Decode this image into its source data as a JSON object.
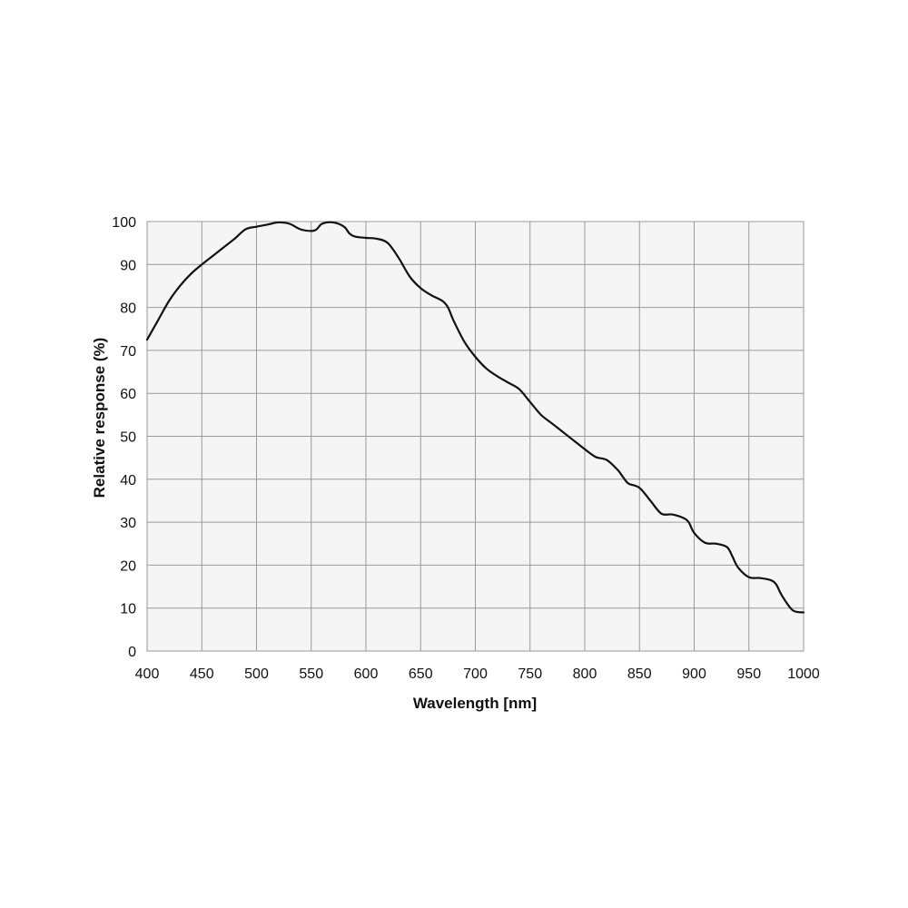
{
  "chart_data": {
    "type": "line",
    "xlabel": "Wavelength [nm]",
    "ylabel": "Relative response (%)",
    "xlim": [
      400,
      1000
    ],
    "ylim": [
      0,
      100
    ],
    "x_ticks": [
      400,
      450,
      500,
      550,
      600,
      650,
      700,
      750,
      800,
      850,
      900,
      950,
      1000
    ],
    "y_ticks": [
      0,
      10,
      20,
      30,
      40,
      50,
      60,
      70,
      80,
      90,
      100
    ],
    "grid": true,
    "line_color": "#111111",
    "plot_background": "#f5f5f5",
    "grid_color": "#9a9a9a",
    "series": [
      {
        "x": [
          400,
          410,
          420,
          430,
          440,
          450,
          460,
          470,
          480,
          490,
          500,
          510,
          520,
          530,
          540,
          550,
          555,
          560,
          570,
          580,
          585,
          590,
          600,
          610,
          620,
          630,
          640,
          650,
          660,
          670,
          675,
          680,
          690,
          700,
          710,
          720,
          730,
          740,
          750,
          760,
          770,
          780,
          790,
          800,
          810,
          820,
          830,
          835,
          840,
          850,
          860,
          870,
          880,
          890,
          895,
          900,
          910,
          920,
          930,
          935,
          940,
          950,
          960,
          970,
          975,
          980,
          990,
          1000
        ],
        "y": [
          72.5,
          77,
          81.5,
          85,
          87.8,
          90,
          92,
          94,
          96,
          98.2,
          98.8,
          99.3,
          99.8,
          99.5,
          98.2,
          97.8,
          98.2,
          99.5,
          99.8,
          98.8,
          97.2,
          96.5,
          96.2,
          96,
          95,
          91.5,
          87.2,
          84.5,
          82.8,
          81.5,
          80,
          77,
          72,
          68.5,
          65.8,
          64,
          62.5,
          61,
          58,
          55,
          53,
          51,
          49,
          47,
          45.2,
          44.5,
          42.2,
          40.5,
          39,
          38,
          35,
          32,
          31.8,
          31,
          30,
          27.5,
          25.2,
          25,
          24.2,
          22,
          19.5,
          17.2,
          17,
          16.5,
          15.5,
          13,
          9.5,
          9
        ]
      }
    ]
  }
}
